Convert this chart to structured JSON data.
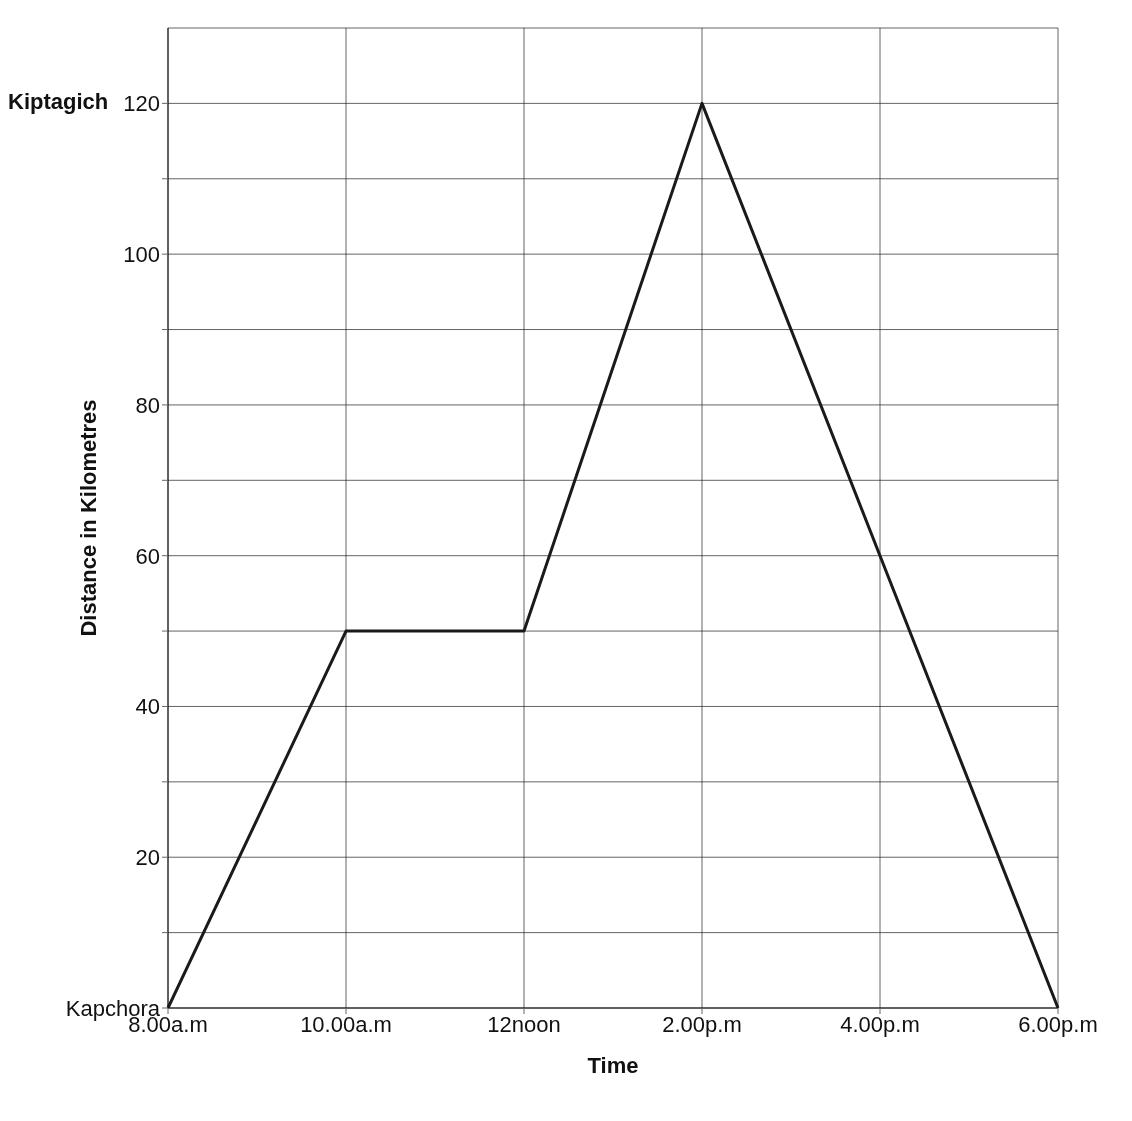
{
  "chart_data": {
    "type": "line",
    "xlabel": "Time",
    "ylabel": "Distance in Kilometres",
    "categories": [
      "8.00a.m",
      "10.00a.m",
      "12noon",
      "2.00p.m",
      "4.00p.m",
      "6.00p.m"
    ],
    "series": [
      {
        "color": "#1a1a1a",
        "values": [
          0,
          50,
          50,
          120,
          60,
          0
        ]
      }
    ],
    "ylim": [
      0,
      130
    ],
    "yticks": [
      {
        "value": 0,
        "label": "Kapchora"
      },
      {
        "value": 10,
        "label": null
      },
      20,
      {
        "value": 30,
        "label": null
      },
      40,
      {
        "value": 50,
        "label": null
      },
      60,
      {
        "value": 70,
        "label": null
      },
      80,
      {
        "value": 90,
        "label": null
      },
      100,
      {
        "value": 110,
        "label": null
      },
      120
    ],
    "annotations": [
      "Kiptagich"
    ],
    "grid": true,
    "marker": "none",
    "line_style": "solid",
    "legend": false
  }
}
